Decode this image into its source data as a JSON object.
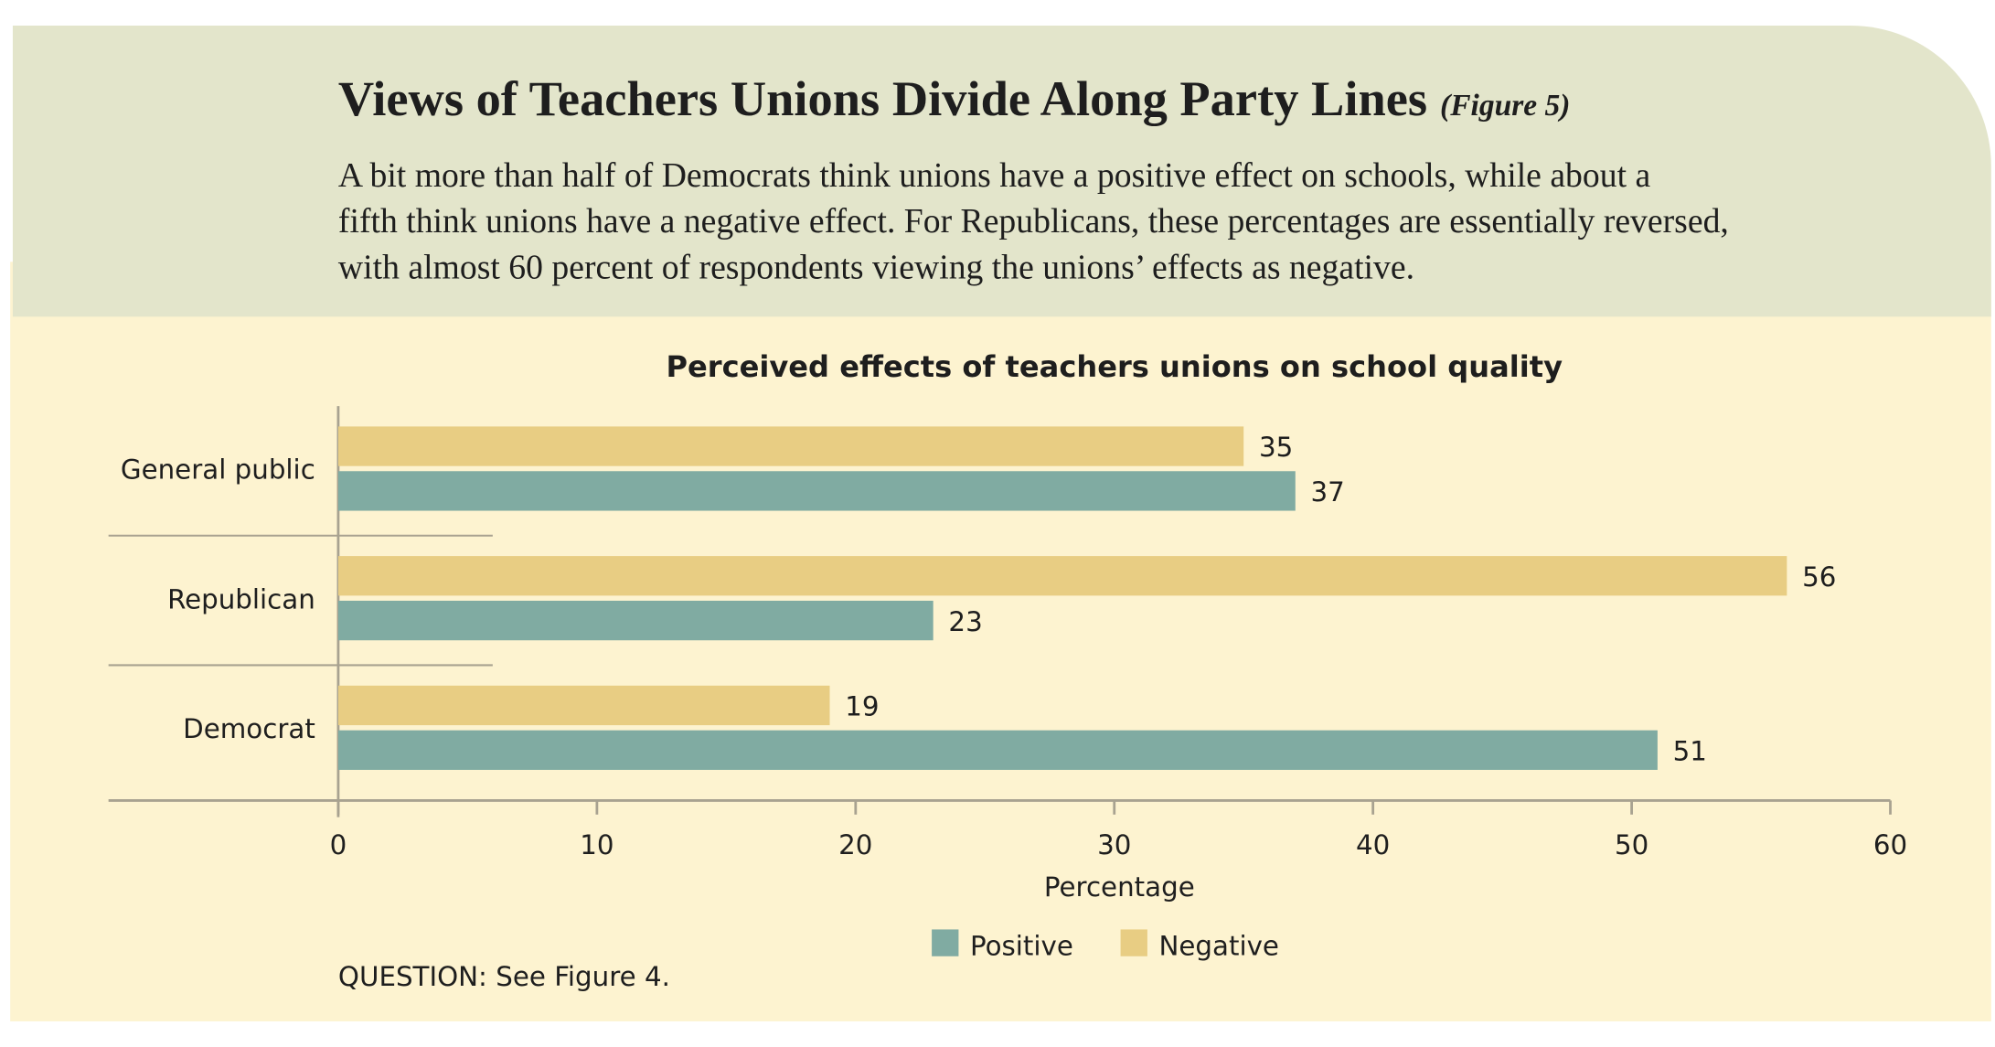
{
  "chart_data": {
    "type": "bar",
    "orientation": "horizontal",
    "header_title": "Views of Teachers Unions Divide Along Party Lines",
    "figure_label": "(Figure 5)",
    "subtitle_lines": [
      "A bit more than half of Democrats think unions have a positive effect on schools, while about a",
      "fifth think unions have a negative effect. For Republicans, these percentages are essentially reversed,",
      "with almost 60 percent of respondents viewing the unions’ effects as negative."
    ],
    "title": "Perceived effects of teachers unions on school quality",
    "categories": [
      "General public",
      "Republican",
      "Democrat"
    ],
    "series": [
      {
        "name": "Positive",
        "color": "#80aba2",
        "values": [
          37,
          23,
          51
        ]
      },
      {
        "name": "Negative",
        "color": "#e8cd83",
        "values": [
          35,
          56,
          19
        ]
      }
    ],
    "xlim": [
      0,
      60
    ],
    "xticks": [
      0,
      10,
      20,
      30,
      40,
      50,
      60
    ],
    "xlabel": "Percentage",
    "legend": "bottom",
    "note": "QUESTION: See Figure 4."
  }
}
